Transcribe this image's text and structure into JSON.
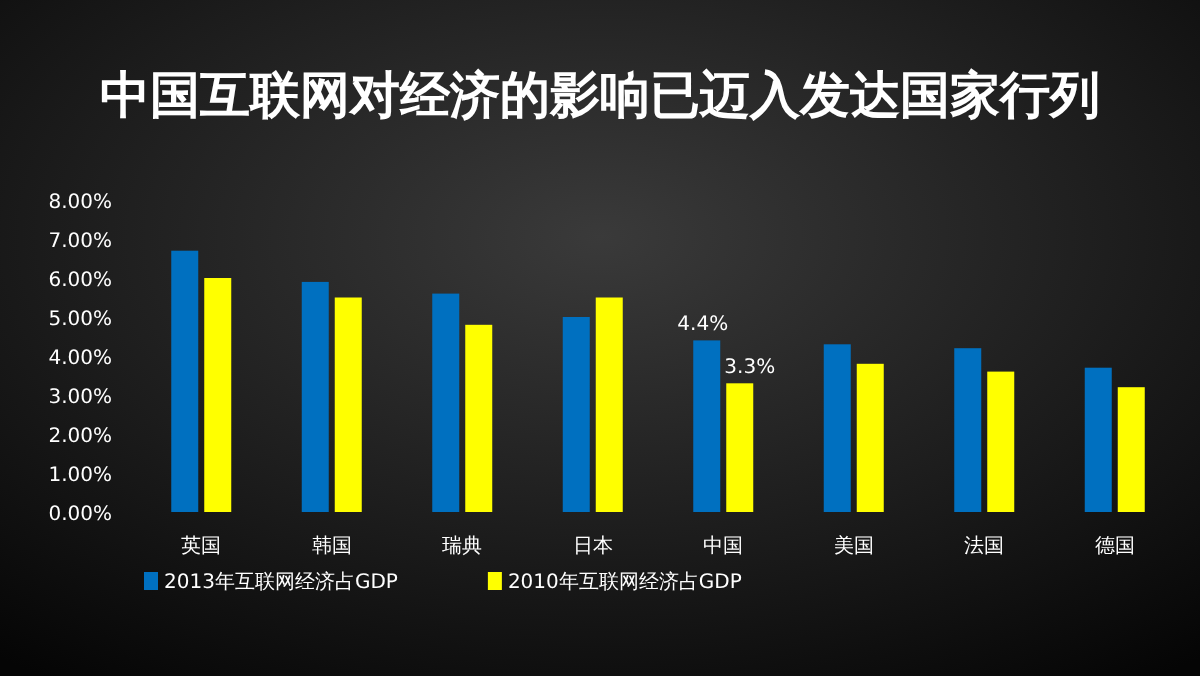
{
  "chart_data": {
    "type": "bar",
    "title": "中国互联网对经济的影响已迈入发达国家行列",
    "categories": [
      "英国",
      "韩国",
      "瑞典",
      "日本",
      "中国",
      "美国",
      "法国",
      "德国"
    ],
    "series": [
      {
        "name": "2013年互联网经济占GDP",
        "color": "#0070c0",
        "values": [
          6.7,
          5.9,
          5.6,
          5.0,
          4.4,
          4.3,
          4.2,
          3.7
        ],
        "value_labels": [
          null,
          null,
          null,
          null,
          "4.4%",
          null,
          null,
          null
        ]
      },
      {
        "name": "2010年互联网经济占GDP",
        "color": "#ffff00",
        "values": [
          6.0,
          5.5,
          4.8,
          5.5,
          3.3,
          3.8,
          3.6,
          3.2
        ],
        "value_labels": [
          null,
          null,
          null,
          null,
          "3.3%",
          null,
          null,
          null
        ]
      }
    ],
    "ylim": [
      0,
      8
    ],
    "yticks": [
      {
        "value": 0,
        "label": "0.00%"
      },
      {
        "value": 1,
        "label": "1.00%"
      },
      {
        "value": 2,
        "label": "2.00%"
      },
      {
        "value": 3,
        "label": "3.00%"
      },
      {
        "value": 4,
        "label": "4.00%"
      },
      {
        "value": 5,
        "label": "5.00%"
      },
      {
        "value": 6,
        "label": "6.00%"
      },
      {
        "value": 7,
        "label": "7.00%"
      },
      {
        "value": 8,
        "label": "8.00%"
      }
    ],
    "grid": false,
    "legend": "bottom"
  }
}
